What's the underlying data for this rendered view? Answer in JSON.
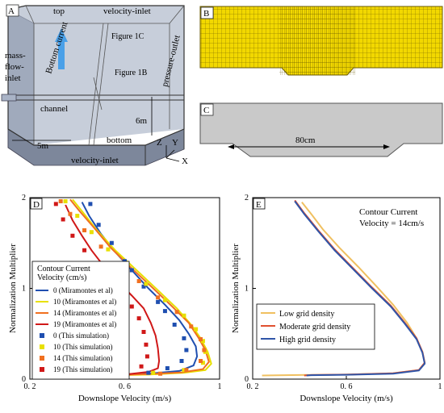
{
  "panel_a": {
    "letter": "A",
    "labels": {
      "top": "top",
      "velocity_inlet_top": "velocity-inlet",
      "bottom_current": "Bottom current",
      "figure_1c": "Figure 1C",
      "figure_1b": "Figure 1B",
      "mass_flow_inlet": [
        "mass-",
        "flow-",
        "inlet"
      ],
      "pressure_outlet": "pressure-outlet",
      "channel": "channel",
      "six_m": "6m",
      "five_m": "5m",
      "bottom": "bottom",
      "velocity_inlet_bottom": "velocity-inlet",
      "axis_z": "Z",
      "axis_y": "Y",
      "axis_x": "X"
    }
  },
  "panel_b": {
    "letter": "B"
  },
  "panel_c": {
    "letter": "C",
    "dimension": "80cm"
  },
  "chart_data": [
    {
      "panel": "D",
      "type": "line",
      "xlabel": "Downslope Velocity (m/s)",
      "ylabel": "Normalization Multiplier",
      "xlim": [
        0.2,
        1.0
      ],
      "ylim": [
        0,
        2
      ],
      "xticks": [
        0.2,
        0.6,
        1
      ],
      "xtick_labels": [
        "0. 2",
        "0. 6",
        "1"
      ],
      "yticks": [
        0,
        1,
        2
      ],
      "ytick_labels": [
        "0",
        "1",
        "2"
      ],
      "legend_title": [
        "Contour  Current",
        "Velocity  (cm/s)"
      ],
      "legend_position": "bottom-left",
      "series": [
        {
          "name": "0  (Miramontes et al)",
          "color": "#1f4fb0",
          "kind": "line",
          "points": [
            [
              0.42,
              1.95
            ],
            [
              0.45,
              1.8
            ],
            [
              0.5,
              1.6
            ],
            [
              0.56,
              1.4
            ],
            [
              0.63,
              1.2
            ],
            [
              0.7,
              1.0
            ],
            [
              0.77,
              0.82
            ],
            [
              0.83,
              0.65
            ],
            [
              0.87,
              0.5
            ],
            [
              0.9,
              0.36
            ],
            [
              0.905,
              0.25
            ],
            [
              0.89,
              0.15
            ],
            [
              0.83,
              0.09
            ],
            [
              0.7,
              0.06
            ],
            [
              0.5,
              0.04
            ],
            [
              0.35,
              0.035
            ],
            [
              0.28,
              0.03
            ]
          ]
        },
        {
          "name": "10  (Miramontes et al)",
          "color": "#e8e000",
          "kind": "line",
          "points": [
            [
              0.38,
              1.98
            ],
            [
              0.42,
              1.85
            ],
            [
              0.48,
              1.65
            ],
            [
              0.56,
              1.42
            ],
            [
              0.65,
              1.2
            ],
            [
              0.74,
              0.98
            ],
            [
              0.82,
              0.78
            ],
            [
              0.88,
              0.6
            ],
            [
              0.92,
              0.45
            ],
            [
              0.95,
              0.3
            ],
            [
              0.965,
              0.17
            ],
            [
              0.94,
              0.1
            ],
            [
              0.85,
              0.07
            ],
            [
              0.7,
              0.05
            ],
            [
              0.5,
              0.04
            ],
            [
              0.3,
              0.035
            ],
            [
              0.24,
              0.03
            ]
          ]
        },
        {
          "name": "14  (Miramontes et al)",
          "color": "#f07020",
          "kind": "line",
          "points": [
            [
              0.37,
              1.98
            ],
            [
              0.41,
              1.85
            ],
            [
              0.47,
              1.67
            ],
            [
              0.54,
              1.45
            ],
            [
              0.63,
              1.22
            ],
            [
              0.72,
              1.0
            ],
            [
              0.8,
              0.8
            ],
            [
              0.87,
              0.62
            ],
            [
              0.91,
              0.46
            ],
            [
              0.94,
              0.32
            ],
            [
              0.955,
              0.19
            ],
            [
              0.93,
              0.11
            ],
            [
              0.84,
              0.075
            ],
            [
              0.7,
              0.055
            ],
            [
              0.5,
              0.04
            ],
            [
              0.3,
              0.035
            ]
          ]
        },
        {
          "name": "19  (Miramontes et al)",
          "color": "#d01818",
          "kind": "line",
          "points": [
            [
              0.35,
              1.92
            ],
            [
              0.38,
              1.75
            ],
            [
              0.42,
              1.58
            ],
            [
              0.46,
              1.42
            ],
            [
              0.51,
              1.25
            ],
            [
              0.57,
              1.08
            ],
            [
              0.63,
              0.92
            ],
            [
              0.68,
              0.78
            ],
            [
              0.71,
              0.62
            ],
            [
              0.73,
              0.48
            ],
            [
              0.74,
              0.34
            ],
            [
              0.745,
              0.2
            ],
            [
              0.74,
              0.12
            ],
            [
              0.7,
              0.08
            ],
            [
              0.6,
              0.05
            ],
            [
              0.45,
              0.04
            ],
            [
              0.3,
              0.035
            ]
          ]
        },
        {
          "name": "0  (This simulation)",
          "color": "#1f4fb0",
          "kind": "marker",
          "points": [
            [
              0.455,
              1.93
            ],
            [
              0.49,
              1.7
            ],
            [
              0.545,
              1.5
            ],
            [
              0.6,
              1.3
            ],
            [
              0.63,
              1.2
            ],
            [
              0.68,
              1.02
            ],
            [
              0.74,
              0.85
            ],
            [
              0.77,
              0.75
            ],
            [
              0.81,
              0.6
            ],
            [
              0.85,
              0.45
            ],
            [
              0.86,
              0.32
            ],
            [
              0.84,
              0.2
            ],
            [
              0.78,
              0.12
            ],
            [
              0.7,
              0.07
            ],
            [
              0.6,
              0.05
            ],
            [
              0.45,
              0.04
            ]
          ]
        },
        {
          "name": "10  (This simulation)",
          "color": "#e8e000",
          "kind": "marker",
          "points": [
            [
              0.35,
              1.96
            ],
            [
              0.4,
              1.8
            ],
            [
              0.46,
              1.62
            ],
            [
              0.53,
              1.43
            ],
            [
              0.61,
              1.24
            ],
            [
              0.69,
              1.05
            ],
            [
              0.77,
              0.87
            ],
            [
              0.85,
              0.7
            ],
            [
              0.9,
              0.55
            ],
            [
              0.93,
              0.42
            ],
            [
              0.94,
              0.3
            ],
            [
              0.93,
              0.18
            ],
            [
              0.85,
              0.1
            ],
            [
              0.72,
              0.07
            ],
            [
              0.55,
              0.05
            ],
            [
              0.4,
              0.04
            ]
          ]
        },
        {
          "name": "14  (This simulation)",
          "color": "#f07020",
          "kind": "marker",
          "points": [
            [
              0.33,
              1.96
            ],
            [
              0.37,
              1.82
            ],
            [
              0.43,
              1.64
            ],
            [
              0.5,
              1.46
            ],
            [
              0.58,
              1.27
            ],
            [
              0.66,
              1.08
            ],
            [
              0.74,
              0.9
            ],
            [
              0.82,
              0.74
            ],
            [
              0.88,
              0.58
            ],
            [
              0.92,
              0.44
            ],
            [
              0.935,
              0.32
            ],
            [
              0.92,
              0.2
            ],
            [
              0.86,
              0.1
            ],
            [
              0.75,
              0.06
            ],
            [
              0.58,
              0.045
            ],
            [
              0.42,
              0.04
            ]
          ]
        },
        {
          "name": "19  (This simulation)",
          "color": "#d01818",
          "kind": "marker",
          "points": [
            [
              0.31,
              1.93
            ],
            [
              0.34,
              1.76
            ],
            [
              0.38,
              1.58
            ],
            [
              0.43,
              1.42
            ],
            [
              0.48,
              1.27
            ],
            [
              0.54,
              1.1
            ],
            [
              0.6,
              0.94
            ],
            [
              0.63,
              0.8
            ],
            [
              0.66,
              0.67
            ],
            [
              0.68,
              0.52
            ],
            [
              0.69,
              0.38
            ],
            [
              0.695,
              0.25
            ],
            [
              0.67,
              0.14
            ],
            [
              0.6,
              0.08
            ],
            [
              0.5,
              0.05
            ],
            [
              0.38,
              0.04
            ],
            [
              0.27,
              0.035
            ],
            [
              0.22,
              0.03
            ]
          ]
        }
      ]
    },
    {
      "panel": "E",
      "type": "line",
      "xlabel": "Downslope Velocity (m/s)",
      "ylabel": "Normalization Multiplier",
      "xlim": [
        0.2,
        1.0
      ],
      "ylim": [
        0,
        2
      ],
      "xticks": [
        0.2,
        0.6,
        1
      ],
      "xtick_labels": [
        "0. 2",
        "0. 6",
        "1"
      ],
      "yticks": [
        0,
        1,
        2
      ],
      "ytick_labels": [
        "0",
        "1",
        "2"
      ],
      "annotation": [
        "Contour  Current",
        "Velocity = 14cm/s"
      ],
      "legend_position": "bottom-left",
      "series": [
        {
          "name": "Low grid density",
          "color": "#f0c060",
          "points": [
            [
              0.41,
              1.95
            ],
            [
              0.45,
              1.82
            ],
            [
              0.5,
              1.65
            ],
            [
              0.57,
              1.45
            ],
            [
              0.65,
              1.24
            ],
            [
              0.73,
              1.02
            ],
            [
              0.8,
              0.82
            ],
            [
              0.86,
              0.62
            ],
            [
              0.9,
              0.45
            ],
            [
              0.925,
              0.3
            ],
            [
              0.935,
              0.18
            ],
            [
              0.91,
              0.1
            ],
            [
              0.8,
              0.065
            ],
            [
              0.6,
              0.05
            ],
            [
              0.4,
              0.045
            ],
            [
              0.24,
              0.04
            ]
          ]
        },
        {
          "name": "Moderate grid density",
          "color": "#e05030",
          "points": [
            [
              0.38,
              1.97
            ],
            [
              0.42,
              1.83
            ],
            [
              0.48,
              1.64
            ],
            [
              0.55,
              1.43
            ],
            [
              0.63,
              1.22
            ],
            [
              0.71,
              1.01
            ],
            [
              0.79,
              0.81
            ],
            [
              0.85,
              0.62
            ],
            [
              0.9,
              0.45
            ],
            [
              0.925,
              0.3
            ],
            [
              0.935,
              0.18
            ],
            [
              0.91,
              0.1
            ],
            [
              0.8,
              0.065
            ],
            [
              0.6,
              0.05
            ],
            [
              0.45,
              0.045
            ],
            [
              0.42,
              0.04
            ]
          ]
        },
        {
          "name": "High grid density",
          "color": "#2f55a8",
          "points": [
            [
              0.38,
              1.96
            ],
            [
              0.42,
              1.82
            ],
            [
              0.48,
              1.63
            ],
            [
              0.55,
              1.42
            ],
            [
              0.63,
              1.21
            ],
            [
              0.71,
              1.0
            ],
            [
              0.79,
              0.8
            ],
            [
              0.85,
              0.61
            ],
            [
              0.9,
              0.44
            ],
            [
              0.925,
              0.29
            ],
            [
              0.935,
              0.17
            ],
            [
              0.91,
              0.095
            ],
            [
              0.8,
              0.06
            ],
            [
              0.6,
              0.048
            ],
            [
              0.45,
              0.044
            ],
            [
              0.43,
              0.04
            ]
          ]
        }
      ]
    }
  ]
}
